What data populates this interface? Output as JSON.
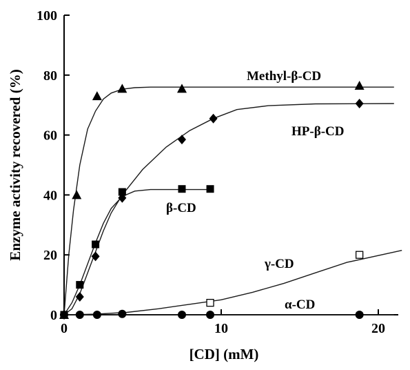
{
  "chart_data": {
    "type": "scatter",
    "xlabel": "[CD] (mM)",
    "ylabel": "Enzyme activity recovered (%)",
    "xlim": [
      0,
      22
    ],
    "ylim": [
      0,
      100
    ],
    "x_ticks": [
      0,
      10,
      20
    ],
    "y_ticks": [
      0,
      20,
      40,
      60,
      80,
      100
    ],
    "grid": false,
    "series": [
      {
        "name": "Methyl-β-CD",
        "marker": "triangle",
        "points": [
          [
            0,
            0
          ],
          [
            0.8,
            40
          ],
          [
            2.1,
            73
          ],
          [
            3.7,
            75.5
          ],
          [
            7.5,
            75.5
          ],
          [
            18.8,
            76.5
          ]
        ],
        "curve": [
          [
            0,
            0
          ],
          [
            0.3,
            20
          ],
          [
            0.6,
            35
          ],
          [
            1.0,
            50
          ],
          [
            1.5,
            62
          ],
          [
            2.0,
            68
          ],
          [
            2.5,
            72
          ],
          [
            3.0,
            74
          ],
          [
            3.7,
            75.3
          ],
          [
            4.5,
            75.8
          ],
          [
            5.5,
            76
          ],
          [
            10,
            76
          ],
          [
            21,
            76
          ]
        ]
      },
      {
        "name": "HP-β-CD",
        "marker": "diamond",
        "points": [
          [
            0,
            0
          ],
          [
            1.0,
            6
          ],
          [
            2.0,
            19.5
          ],
          [
            3.7,
            39
          ],
          [
            7.5,
            58.5
          ],
          [
            9.5,
            65.5
          ],
          [
            18.8,
            70.5
          ]
        ],
        "curve": [
          [
            0,
            0
          ],
          [
            0.5,
            2
          ],
          [
            1.0,
            7
          ],
          [
            1.5,
            14
          ],
          [
            2.0,
            21
          ],
          [
            2.5,
            28
          ],
          [
            3.0,
            34
          ],
          [
            3.7,
            40
          ],
          [
            5.0,
            48.5
          ],
          [
            6.5,
            56
          ],
          [
            8.0,
            61.5
          ],
          [
            9.5,
            65.5
          ],
          [
            11,
            68.5
          ],
          [
            13,
            69.8
          ],
          [
            16,
            70.4
          ],
          [
            21,
            70.5
          ]
        ]
      },
      {
        "name": "β-CD",
        "marker": "filled-square",
        "points": [
          [
            0,
            0
          ],
          [
            1.0,
            10
          ],
          [
            2.0,
            23.5
          ],
          [
            3.7,
            41
          ],
          [
            7.5,
            42
          ],
          [
            9.3,
            42
          ]
        ],
        "curve": [
          [
            0,
            0
          ],
          [
            0.5,
            4
          ],
          [
            1.0,
            10
          ],
          [
            1.5,
            17
          ],
          [
            2.0,
            24
          ],
          [
            2.5,
            30.5
          ],
          [
            3.0,
            35.5
          ],
          [
            3.7,
            39.5
          ],
          [
            4.5,
            41.3
          ],
          [
            5.5,
            41.8
          ],
          [
            9.3,
            41.8
          ]
        ]
      },
      {
        "name": "γ-CD",
        "marker": "open-square",
        "points": [
          [
            9.3,
            4
          ],
          [
            18.8,
            20
          ]
        ],
        "curve": [
          [
            0,
            0
          ],
          [
            2,
            0.2
          ],
          [
            4,
            0.8
          ],
          [
            6,
            2
          ],
          [
            8,
            3.5
          ],
          [
            10,
            5
          ],
          [
            12,
            7.5
          ],
          [
            14,
            10.5
          ],
          [
            16,
            14
          ],
          [
            18,
            17.5
          ],
          [
            21.5,
            21.5
          ]
        ]
      },
      {
        "name": "α-CD",
        "marker": "circle",
        "points": [
          [
            0,
            0
          ],
          [
            1.0,
            0
          ],
          [
            2.1,
            0
          ],
          [
            3.7,
            0.3
          ],
          [
            7.5,
            0
          ],
          [
            9.3,
            0
          ],
          [
            18.8,
            0
          ]
        ],
        "curve": [
          [
            0,
            0
          ],
          [
            21,
            0
          ]
        ]
      }
    ]
  }
}
